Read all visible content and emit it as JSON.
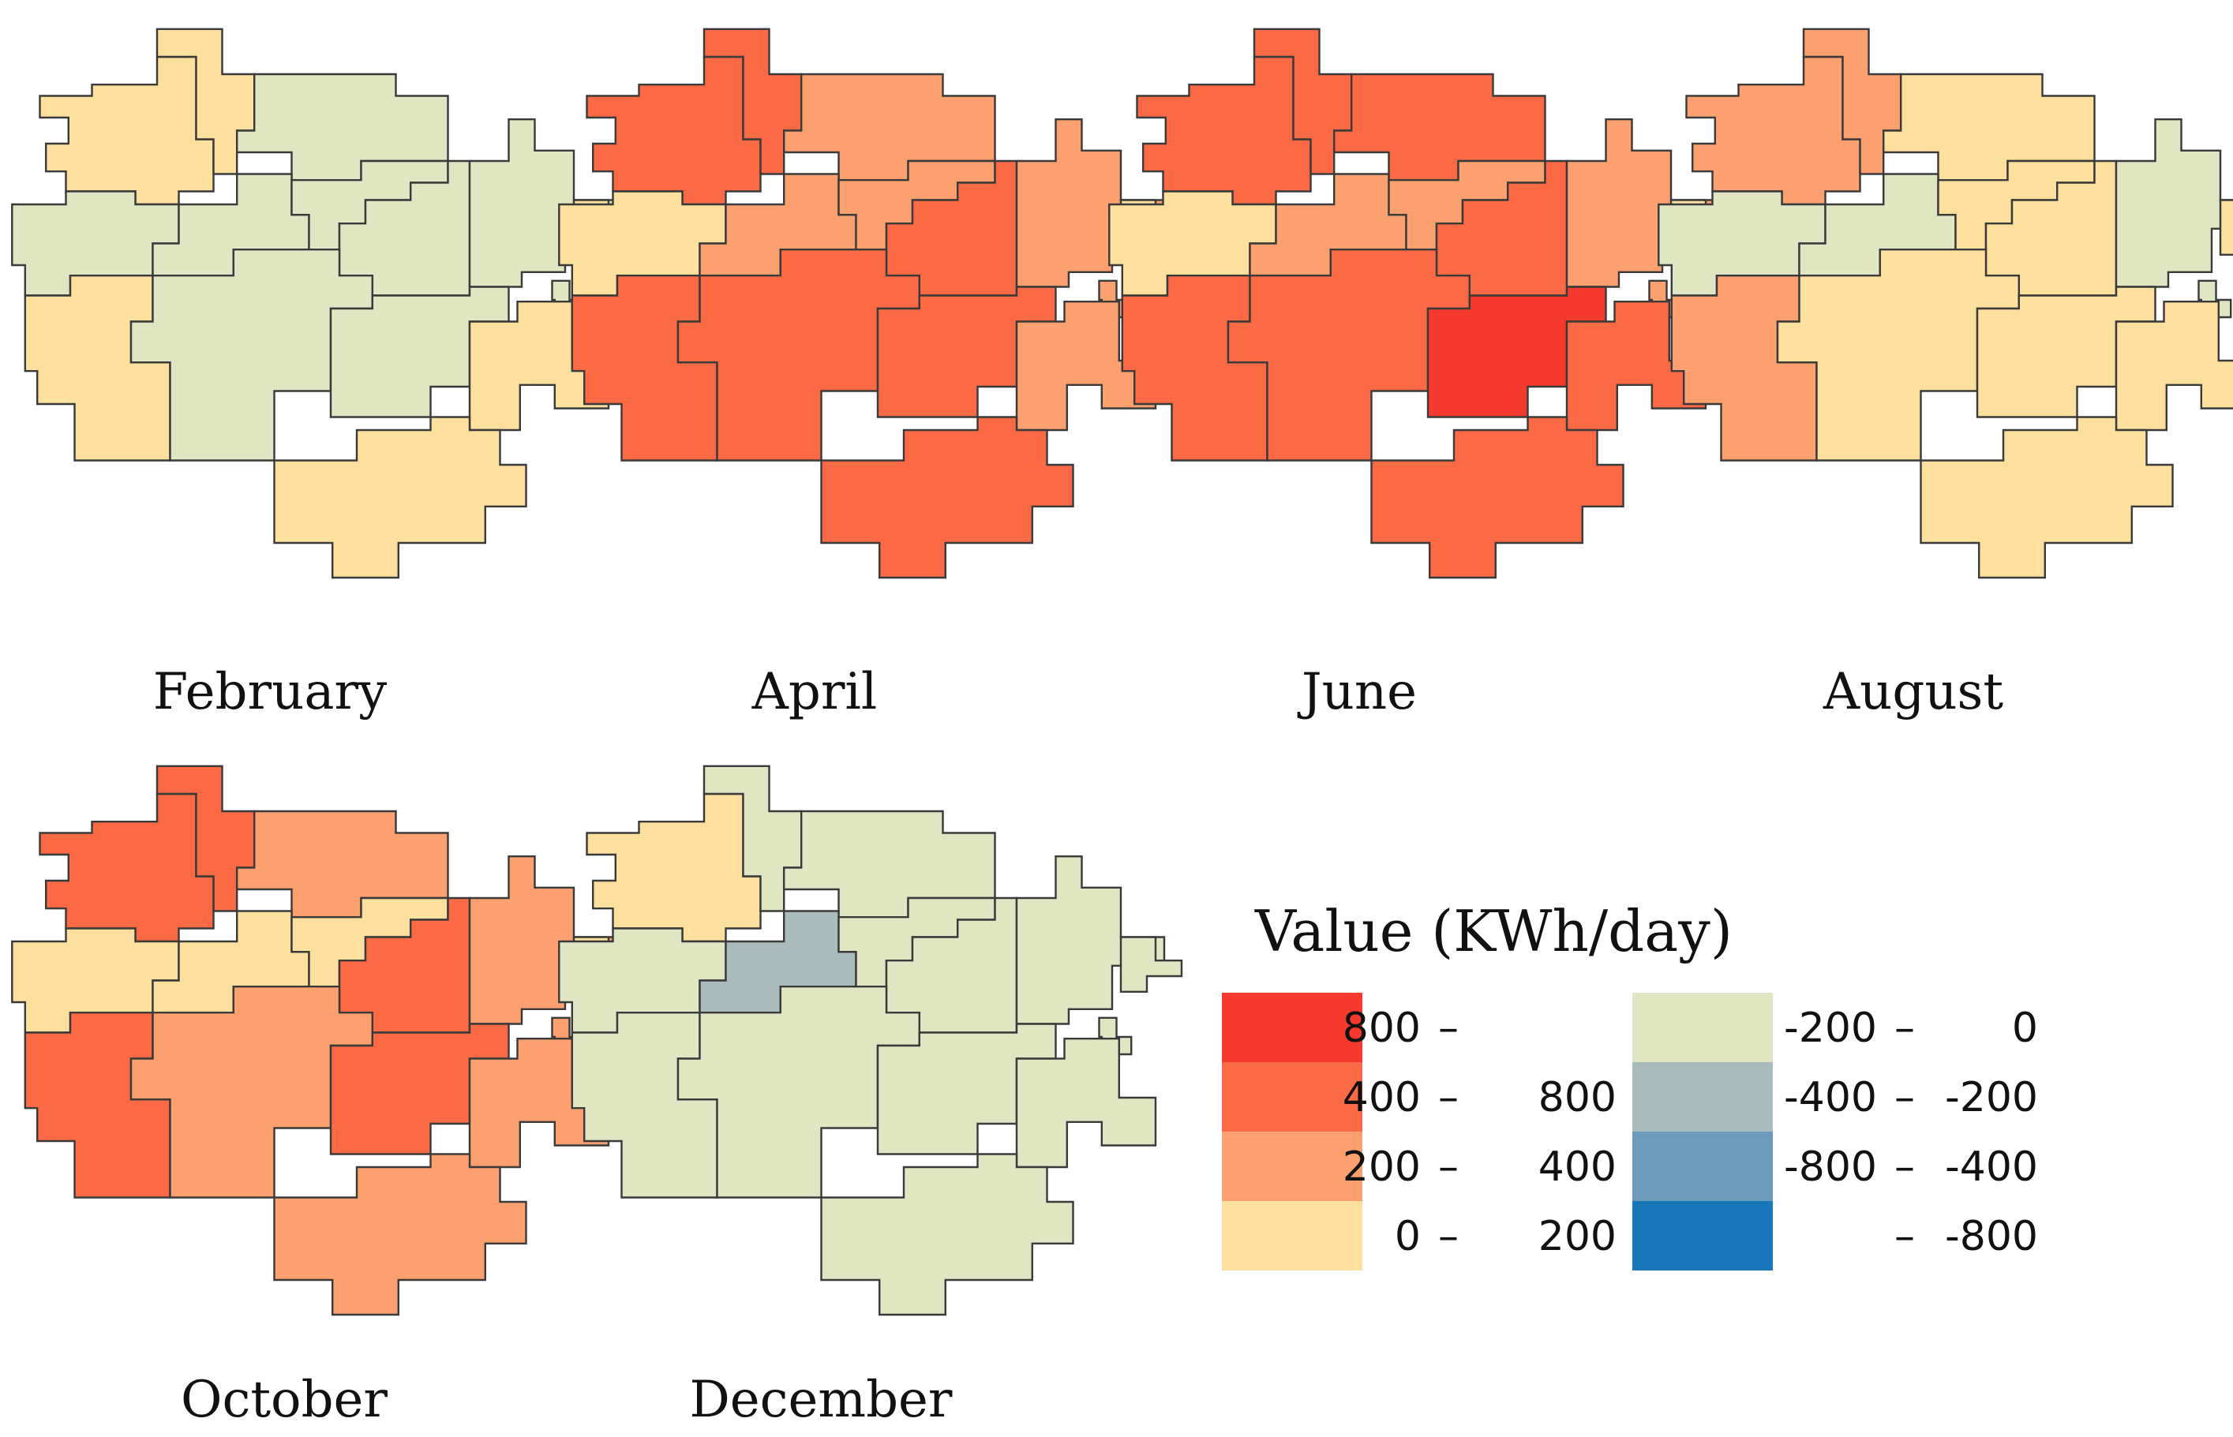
{
  "chart_data": {
    "type": "choropleth",
    "unit": "KWh/day",
    "legend": {
      "title": "Value (KWh/day)",
      "classes": [
        {
          "id": "c800",
          "label_from": "800",
          "label_to": "",
          "min": 800,
          "max": null,
          "color": "#f53a2d"
        },
        {
          "id": "c400",
          "label_from": "400",
          "label_to": "800",
          "min": 400,
          "max": 800,
          "color": "#fb6a45"
        },
        {
          "id": "c200",
          "label_from": "200",
          "label_to": "400",
          "min": 200,
          "max": 400,
          "color": "#fca070"
        },
        {
          "id": "c0",
          "label_from": "0",
          "label_to": "200",
          "min": 0,
          "max": 200,
          "color": "#fddf9e"
        },
        {
          "id": "cm200",
          "label_from": "-200",
          "label_to": "0",
          "min": -200,
          "max": 0,
          "color": "#e0e6c2"
        },
        {
          "id": "cm400",
          "label_from": "-400",
          "label_to": "-200",
          "min": -400,
          "max": -200,
          "color": "#a9bcbb"
        },
        {
          "id": "cm800",
          "label_from": "-800",
          "label_to": "-400",
          "min": -800,
          "max": -400,
          "color": "#6d9aba"
        },
        {
          "id": "cmin",
          "label_from": "",
          "label_to": "-800",
          "min": null,
          "max": -800,
          "color": "#1876b9"
        }
      ]
    },
    "region_ids": [
      "NW",
      "N",
      "NE",
      "W",
      "CW",
      "C",
      "CE",
      "E",
      "FE",
      "SW",
      "S",
      "SC",
      "SE",
      "FS",
      "I1"
    ],
    "months": [
      {
        "name": "February",
        "classes": {
          "NW": "c0",
          "N": "c0",
          "NE": "cm200",
          "W": "cm200",
          "CW": "cm200",
          "C": "cm200",
          "CE": "cm200",
          "E": "cm200",
          "FE": "cm200",
          "SW": "c0",
          "S": "cm200",
          "SC": "cm200",
          "SE": "c0",
          "FS": "c0",
          "I1": "c0"
        }
      },
      {
        "name": "April",
        "classes": {
          "NW": "c400",
          "N": "c400",
          "NE": "c200",
          "W": "c0",
          "CW": "c200",
          "C": "c200",
          "CE": "c400",
          "E": "c200",
          "FE": "c200",
          "SW": "c400",
          "S": "c400",
          "SC": "c400",
          "SE": "c200",
          "FS": "c400",
          "I1": "c0"
        }
      },
      {
        "name": "June",
        "classes": {
          "NW": "c400",
          "N": "c400",
          "NE": "c400",
          "W": "c0",
          "CW": "c200",
          "C": "c200",
          "CE": "c400",
          "E": "c200",
          "FE": "c200",
          "SW": "c400",
          "S": "c400",
          "SC": "c800",
          "SE": "c400",
          "FS": "c400",
          "I1": "c0"
        }
      },
      {
        "name": "August",
        "classes": {
          "NW": "c200",
          "N": "c200",
          "NE": "c0",
          "W": "cm200",
          "CW": "cm200",
          "C": "c0",
          "CE": "c0",
          "E": "cm200",
          "FE": "cm200",
          "SW": "c200",
          "S": "c0",
          "SC": "c0",
          "SE": "c0",
          "FS": "c0",
          "I1": "c0"
        }
      },
      {
        "name": "October",
        "classes": {
          "NW": "c400",
          "N": "c400",
          "NE": "c200",
          "W": "c0",
          "CW": "c0",
          "C": "c0",
          "CE": "c400",
          "E": "c200",
          "FE": "c200",
          "SW": "c400",
          "S": "c200",
          "SC": "c400",
          "SE": "c200",
          "FS": "c200",
          "I1": "c0"
        }
      },
      {
        "name": "December",
        "classes": {
          "NW": "c0",
          "N": "cm200",
          "NE": "cm200",
          "W": "cm200",
          "CW": "cm400",
          "C": "cm200",
          "CE": "cm200",
          "E": "cm200",
          "FE": "cm200",
          "SW": "cm200",
          "S": "cm200",
          "SC": "cm200",
          "SE": "cm200",
          "FS": "cm200",
          "I1": "cm200"
        }
      }
    ]
  }
}
